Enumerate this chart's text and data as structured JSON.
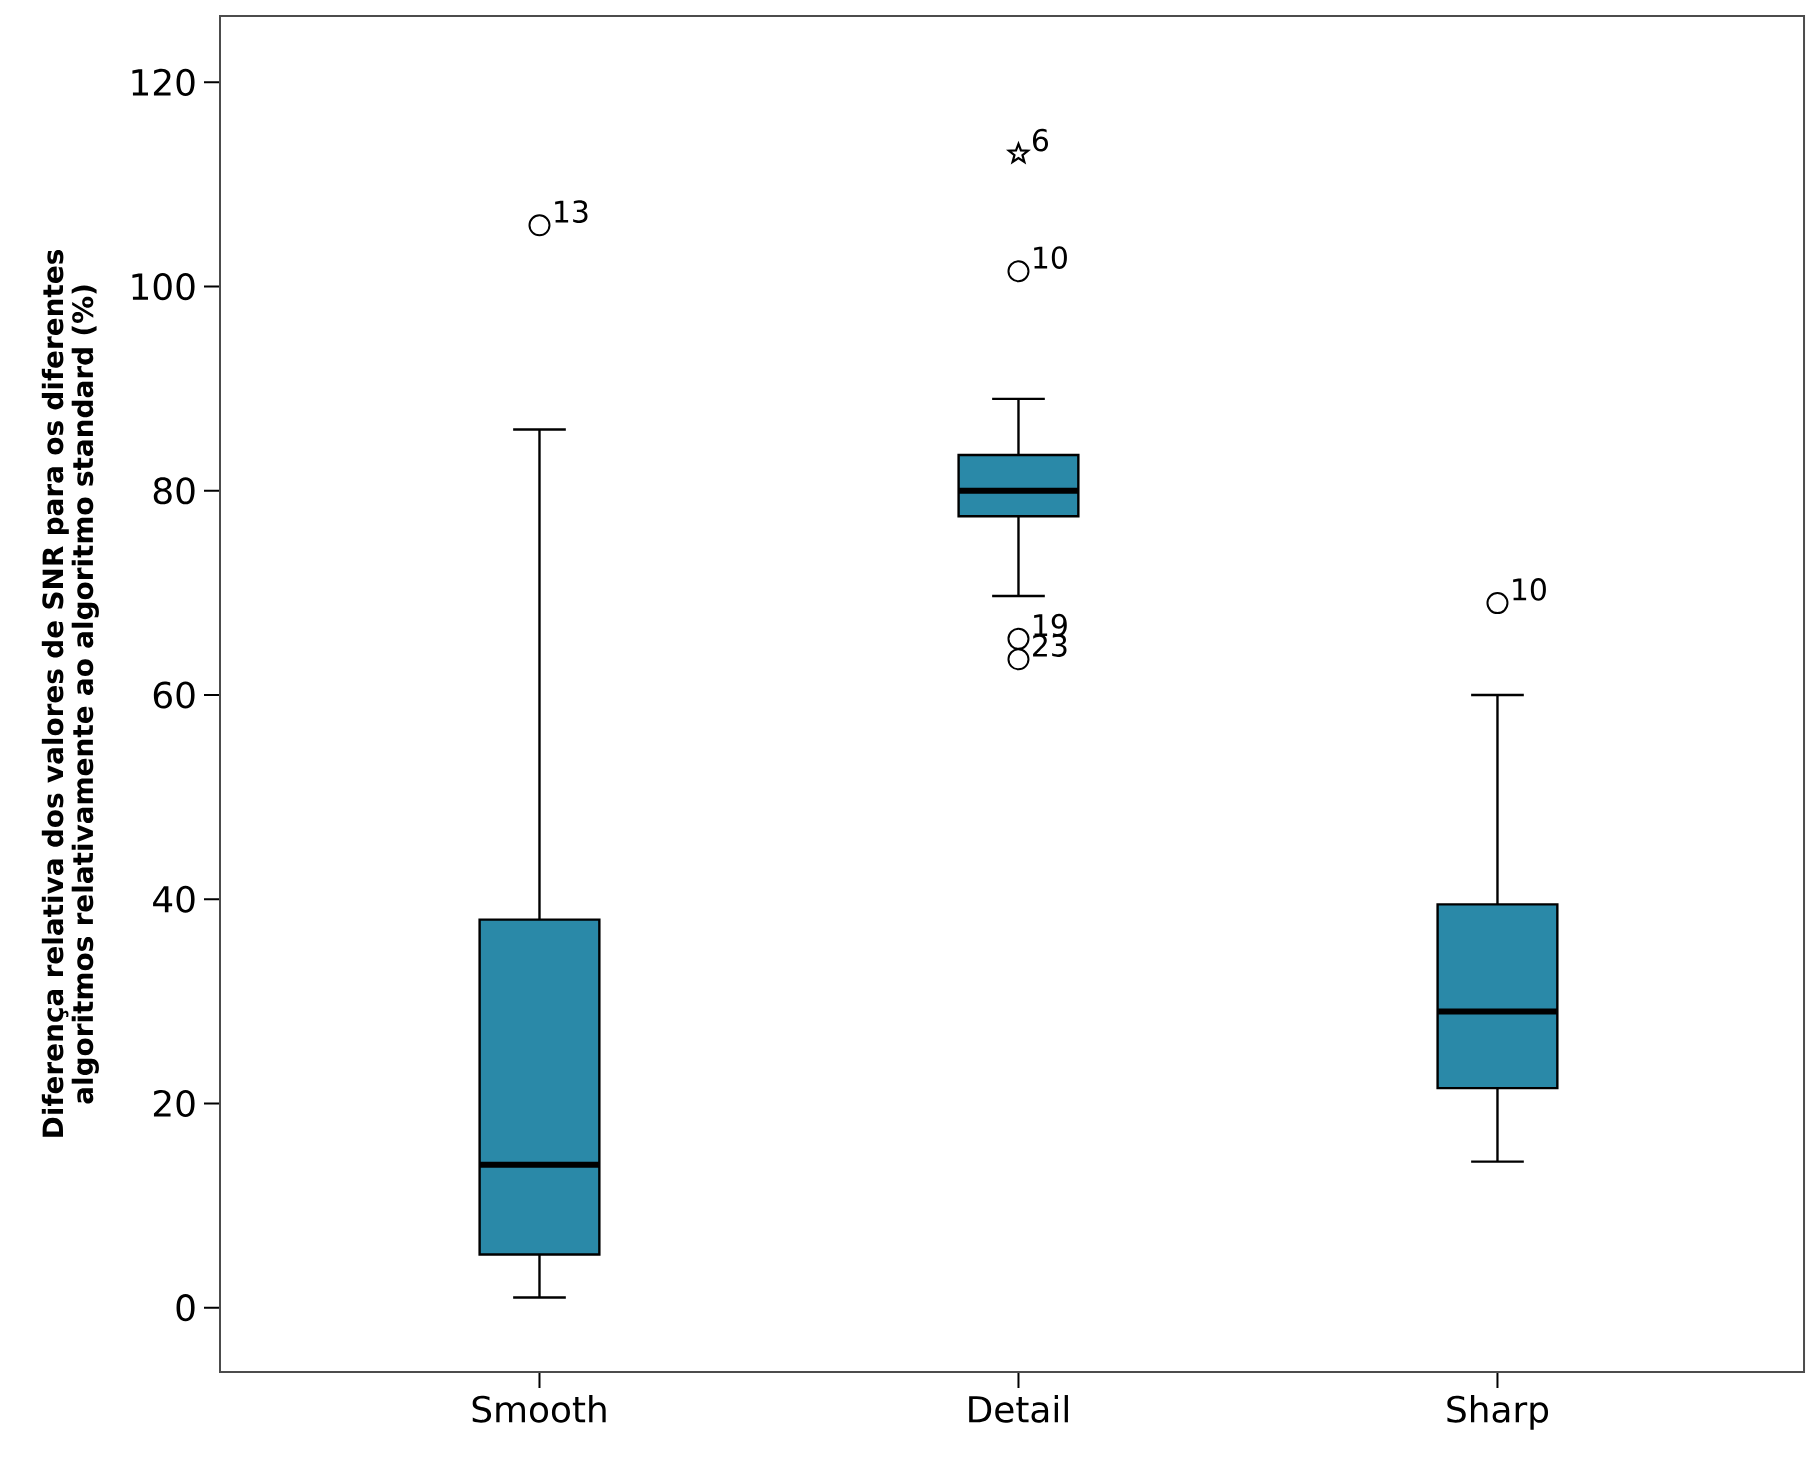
{
  "chart_data": {
    "type": "box",
    "ylabel": "Diferença relativa dos valores de SNR para os diferentes algoritmos relativamente ao algoritmo standard (%)",
    "categories": [
      "Smooth",
      "Detail",
      "Sharp"
    ],
    "ylim": [
      -6.3,
      126.5
    ],
    "yticks": [
      0,
      20,
      40,
      60,
      80,
      100,
      120
    ],
    "grid": false,
    "series": [
      {
        "color": "#2a89a8",
        "marker": "circle",
        "boxes": [
          {
            "low": 1,
            "q1": 5.2,
            "median": 14,
            "q3": 38,
            "high": 86,
            "outliers": [
              106
            ]
          },
          {
            "low": 69.7,
            "q1": 77.5,
            "median": 80,
            "q3": 83.5,
            "high": 89,
            "outliers": [
              101.5,
              65.5,
              63.5
            ]
          },
          {
            "low": 14.3,
            "q1": 21.5,
            "median": 29,
            "q3": 39.5,
            "high": 60,
            "outliers": [
              69
            ]
          }
        ]
      },
      {
        "type": "scatter",
        "marker": "star",
        "color": "#000000",
        "x": [
          "Detail"
        ],
        "values": [
          113
        ]
      }
    ],
    "annotations": [
      "13",
      "10",
      "19",
      "23",
      "10",
      "6"
    ]
  }
}
